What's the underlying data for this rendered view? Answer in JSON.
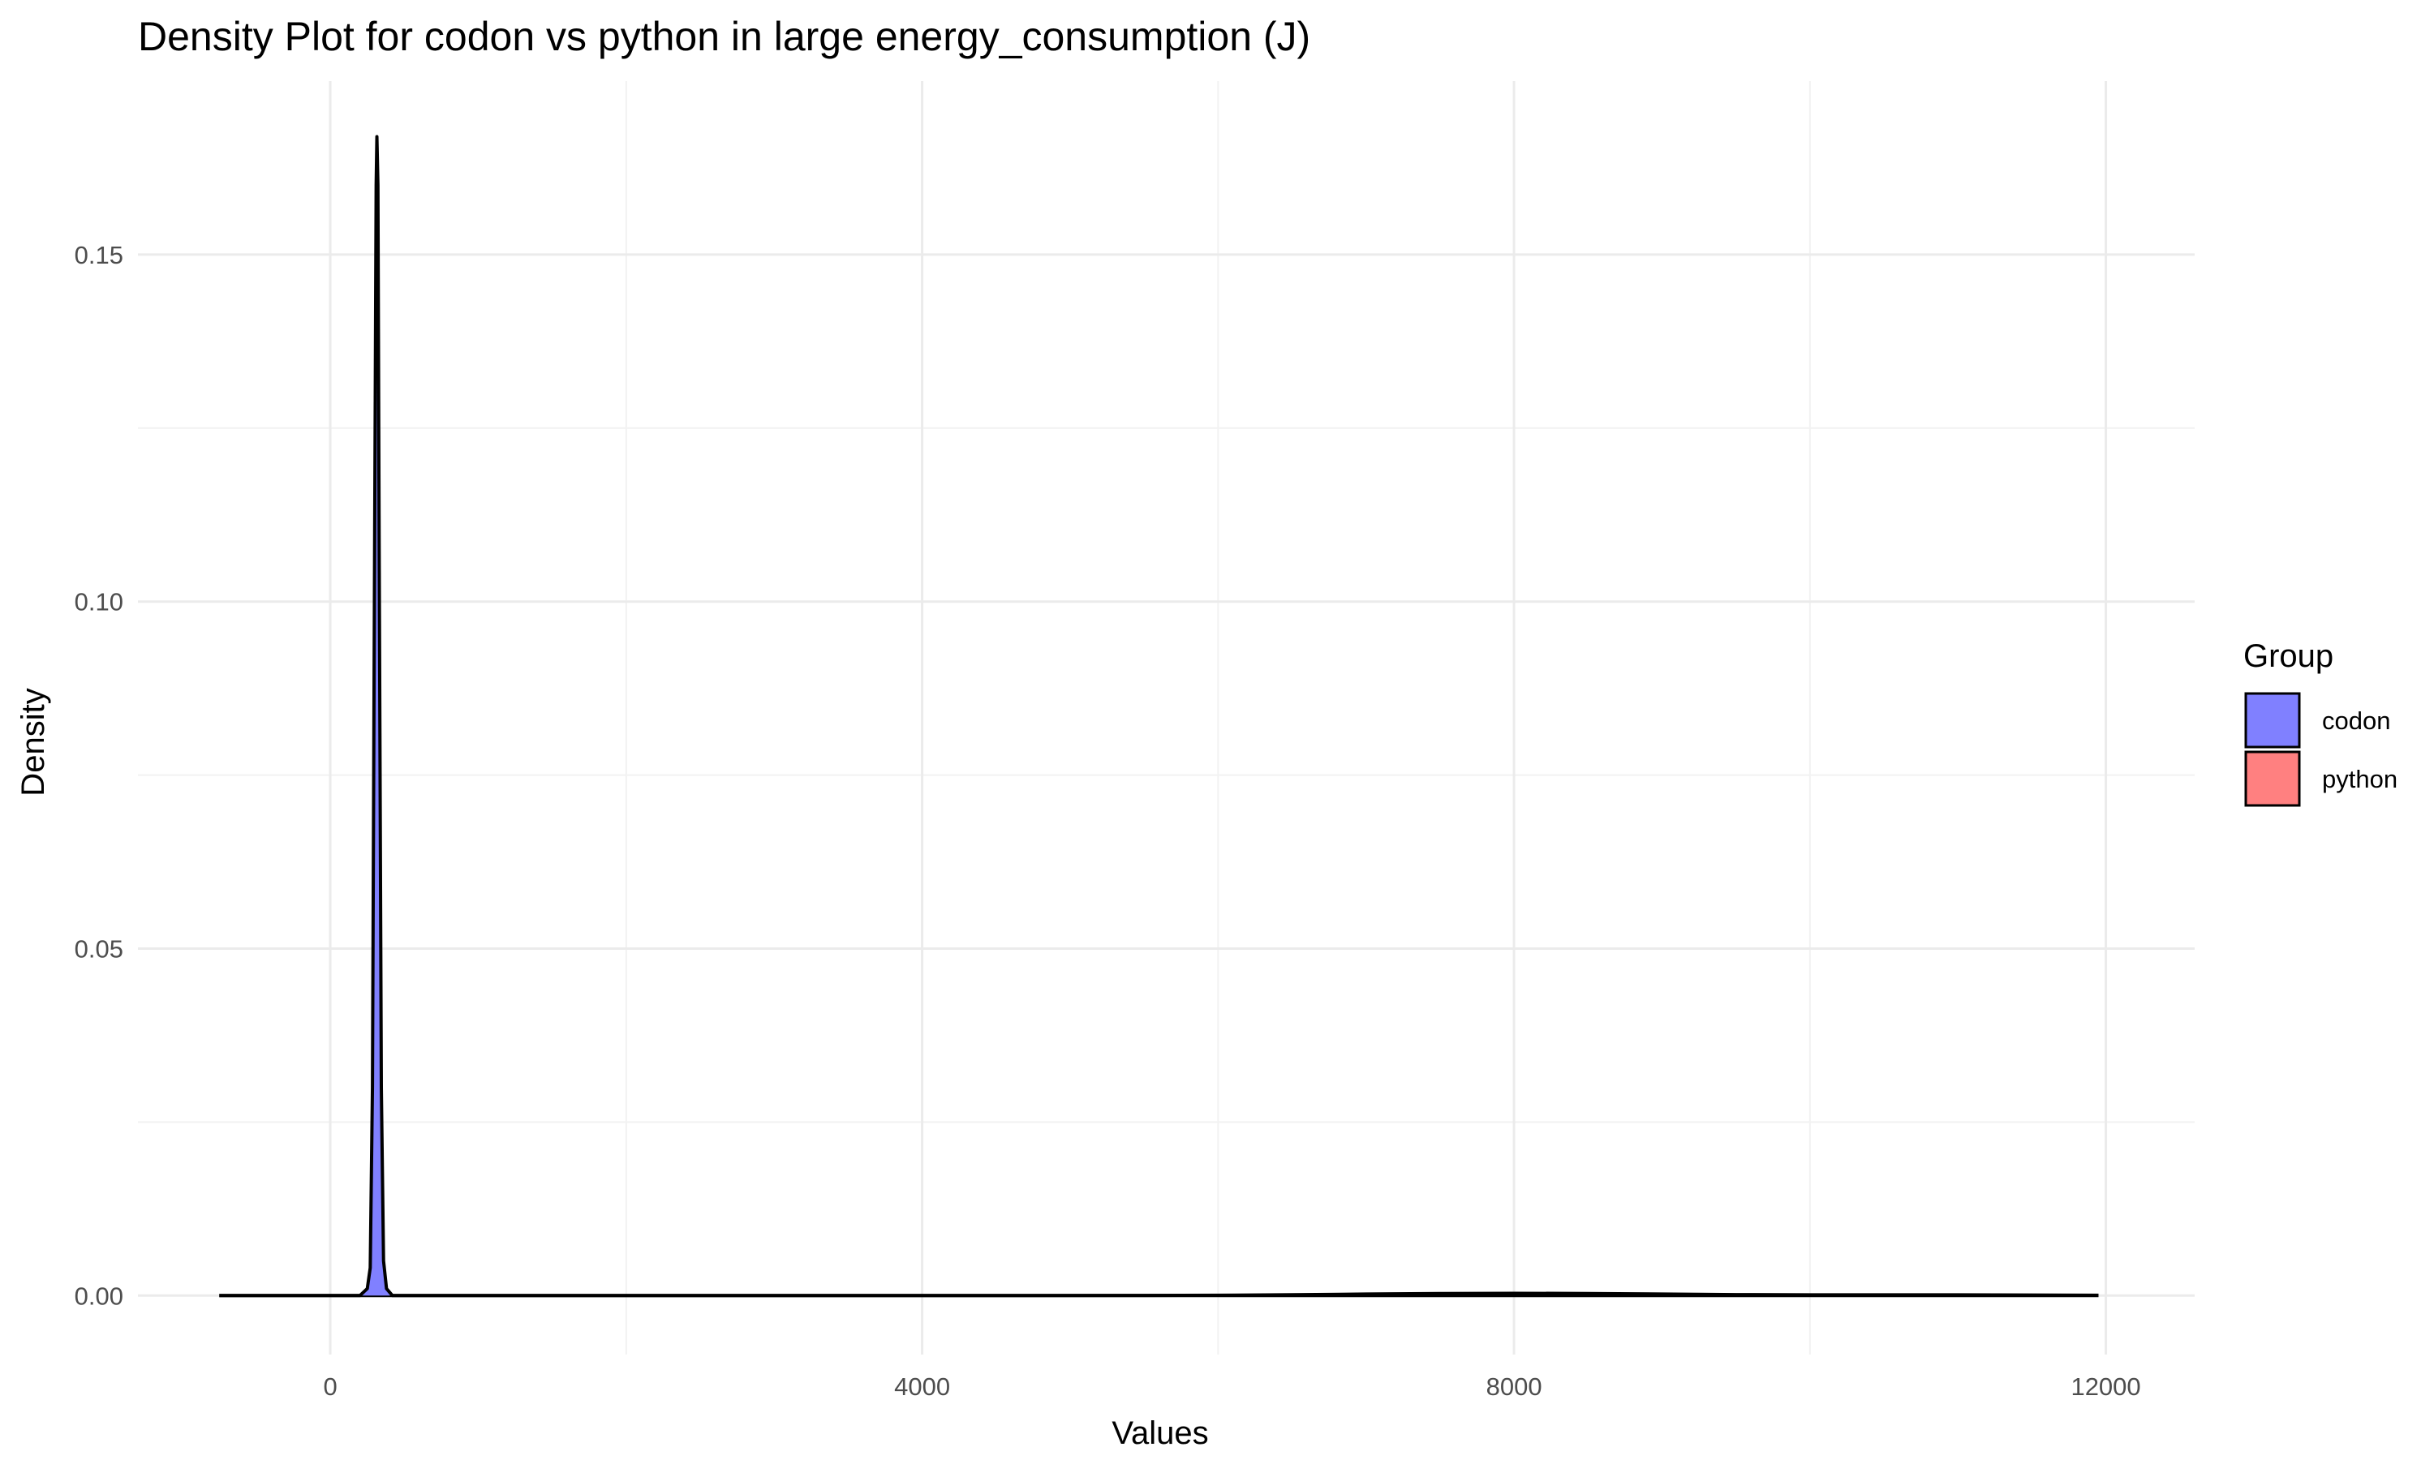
{
  "chart_data": {
    "type": "area",
    "title": "Density Plot for codon vs python in large energy_consumption (J)",
    "xlabel": "Values",
    "ylabel": "Density",
    "xlim": [
      -1300,
      12600
    ],
    "ylim": [
      -0.0085,
      0.175
    ],
    "x_ticks": [
      0,
      4000,
      8000,
      12000
    ],
    "x_tick_labels": [
      "0",
      "4000",
      "8000",
      "12000"
    ],
    "y_ticks": [
      0.0,
      0.05,
      0.1,
      0.15
    ],
    "y_tick_labels": [
      "0.00",
      "0.05",
      "0.10",
      "0.15"
    ],
    "grid": true,
    "legend": {
      "title": "Group",
      "position": "right"
    },
    "series": [
      {
        "name": "codon",
        "color": "#8080ff",
        "x": [
          -750,
          200,
          250,
          270,
          285,
          300,
          310,
          315,
          322,
          330,
          345,
          360,
          380,
          420,
          8000,
          11950
        ],
        "y": [
          0,
          0,
          0.001,
          0.004,
          0.03,
          0.11,
          0.16,
          0.167,
          0.16,
          0.11,
          0.03,
          0.005,
          0.001,
          0,
          0,
          0
        ]
      },
      {
        "name": "python",
        "color": "#ff8080",
        "x": [
          -750,
          0,
          2000,
          4000,
          5500,
          6000,
          6500,
          7000,
          7500,
          8000,
          8500,
          9000,
          9500,
          10000,
          10500,
          11000,
          11500,
          11950
        ],
        "y": [
          0,
          0,
          0,
          0,
          2e-05,
          5e-05,
          0.00012,
          0.00022,
          0.0003,
          0.00033,
          0.0003,
          0.00022,
          0.00014,
          0.0001,
          0.0001,
          0.0001,
          7e-05,
          4e-05
        ]
      }
    ]
  }
}
